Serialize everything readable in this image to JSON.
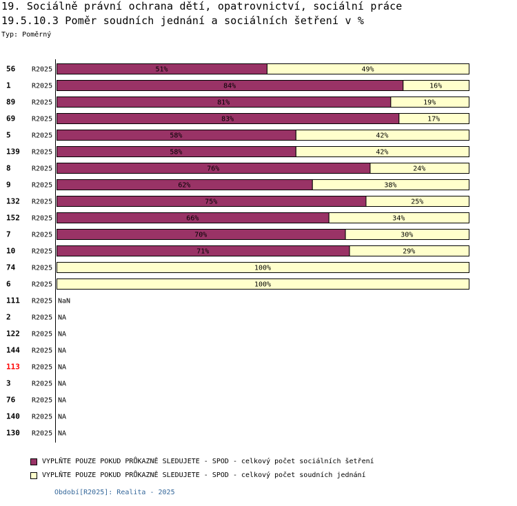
{
  "header": {
    "title1": "19. Sociálně právní ochrana dětí, opatrovnictví, sociální práce",
    "title2": "19.5.10.3 Poměr soudních jednání a sociálních šetření v %",
    "subtitle": "Typ: Poměrný"
  },
  "colors": {
    "series1": "#993366",
    "series2": "#ffffcc",
    "highlight": "#ff0000",
    "footer": "#336699"
  },
  "chart_data": {
    "type": "bar",
    "orientation": "horizontal",
    "stacked": true,
    "unit": "%",
    "xlim": [
      0,
      100
    ],
    "period_label": "R2025",
    "categories": [
      "56",
      "1",
      "89",
      "69",
      "5",
      "139",
      "8",
      "9",
      "132",
      "152",
      "7",
      "10",
      "74",
      "6",
      "111",
      "2",
      "122",
      "144",
      "113",
      "3",
      "76",
      "140",
      "130"
    ],
    "highlighted": [
      "113"
    ],
    "series": [
      {
        "name": "VYPLŇTE POUZE POKUD PRŮKAZNĚ SLEDUJETE - SPOD - celkový počet sociálních šetření",
        "values": [
          51,
          84,
          81,
          83,
          58,
          58,
          76,
          62,
          75,
          66,
          70,
          71,
          0,
          0,
          null,
          null,
          null,
          null,
          null,
          null,
          null,
          null,
          null
        ]
      },
      {
        "name": "VYPLŇTE POUZE POKUD PRŮKAZNĚ SLEDUJETE - SPOD - celkový počet soudních jednání",
        "values": [
          49,
          16,
          19,
          17,
          42,
          42,
          24,
          38,
          25,
          34,
          30,
          29,
          100,
          100,
          null,
          null,
          null,
          null,
          null,
          null,
          null,
          null,
          null
        ]
      }
    ],
    "missing_labels": [
      "",
      "",
      "",
      "",
      "",
      "",
      "",
      "",
      "",
      "",
      "",
      "",
      "",
      "",
      "NaN",
      "NA",
      "NA",
      "NA",
      "NA",
      "NA",
      "NA",
      "NA",
      "NA"
    ]
  },
  "legend": {
    "item1": "VYPLŇTE POUZE POKUD PRŮKAZNĚ SLEDUJETE - SPOD - celkový počet sociálních šetření",
    "item2": "VYPLŇTE POUZE POKUD PRŮKAZNĚ SLEDUJETE - SPOD - celkový počet soudních jednání"
  },
  "footer": "Období[R2025]: Realita - 2025"
}
